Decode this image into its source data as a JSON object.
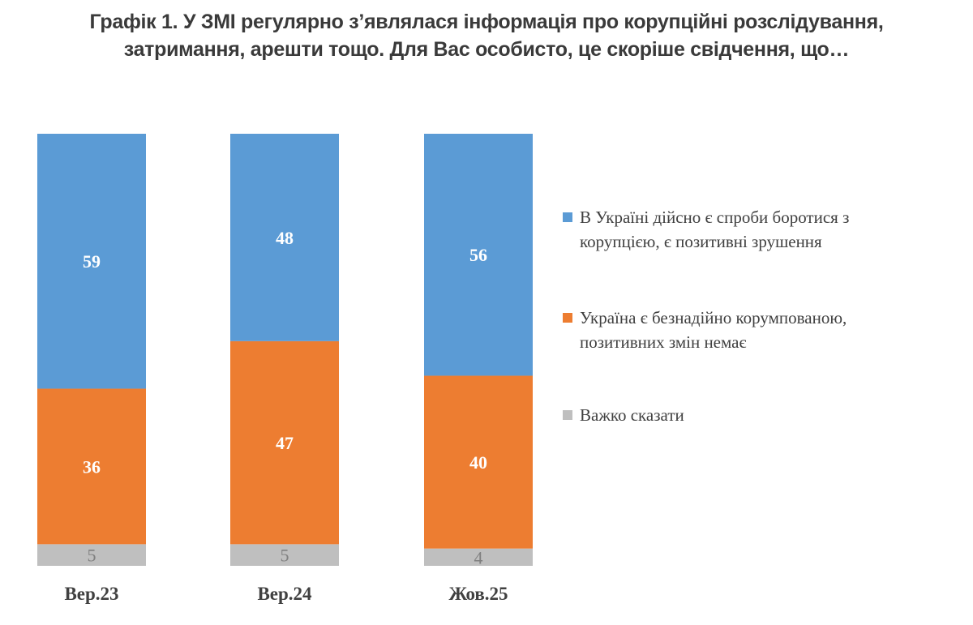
{
  "chart_data": {
    "type": "bar",
    "stacked": true,
    "title": [
      "Графік 1. У ЗМІ регулярно з’являлася інформація про корупційні розслідування,",
      "затримання, арешти тощо. Для Вас особисто, це скоріше свідчення, що…"
    ],
    "categories": [
      "Вер.23",
      "Вер.24",
      "Жов.25"
    ],
    "series": [
      {
        "name": "В Україні дійсно є спроби боротися з корупцією, є позитивні зрушення",
        "legend_lines": [
          "В Україні дійсно є спроби боротися з",
          "корупцією, є позитивні зрушення"
        ],
        "values": [
          59,
          48,
          56
        ],
        "color": "#5B9BD5"
      },
      {
        "name": "Україна є безнадійно корумпованою, позитивних змін немає",
        "legend_lines": [
          "Україна є безнадійно корумпованою,",
          "позитивних змін немає"
        ],
        "values": [
          36,
          47,
          40
        ],
        "color": "#ED7D31"
      },
      {
        "name": "Важко сказати",
        "legend_lines": [
          "Важко сказати"
        ],
        "values": [
          5,
          5,
          4
        ],
        "color": "#BFBFBF"
      }
    ],
    "ylim": [
      0,
      100
    ],
    "grid": false,
    "legend": "right"
  }
}
